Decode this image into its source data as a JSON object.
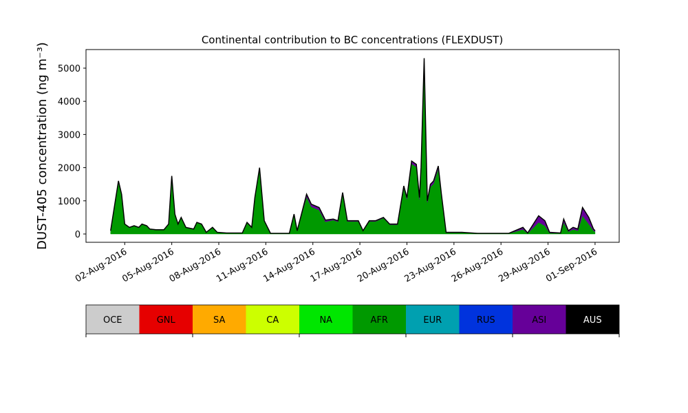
{
  "chart_data": {
    "type": "stacked_area",
    "title": "Continental contribution to BC concentrations (FLEXDUST)",
    "ylabel": "DUST-405 concentration (ng m⁻³)",
    "x": [
      1.1,
      1.4,
      1.6,
      1.8,
      2.0,
      2.3,
      2.6,
      2.9,
      3.1,
      3.4,
      3.6,
      4.0,
      4.5,
      4.8,
      5.0,
      5.2,
      5.4,
      5.6,
      5.9,
      6.4,
      6.6,
      6.9,
      7.2,
      7.6,
      7.9,
      8.5,
      9.5,
      9.8,
      10.1,
      10.3,
      10.6,
      10.9,
      11.3,
      12.5,
      12.8,
      13.0,
      13.6,
      13.9,
      14.4,
      14.8,
      15.3,
      15.6,
      15.9,
      16.2,
      16.9,
      17.2,
      17.6,
      18.0,
      18.5,
      18.9,
      19.4,
      19.8,
      20.0,
      20.3,
      20.6,
      20.8,
      20.9,
      21.1,
      21.3,
      21.5,
      21.7,
      22.0,
      22.2,
      22.5,
      23.5,
      24.5,
      26.5,
      27.4,
      27.7,
      28.4,
      28.8,
      29.1,
      29.8,
      30.0,
      30.3,
      30.6,
      30.9,
      31.2,
      31.6,
      31.9,
      32.0
    ],
    "series": [
      {
        "name": "AFR",
        "color": "#009900",
        "values": [
          90,
          990,
          1580,
          1180,
          290,
          190,
          240,
          190,
          290,
          240,
          140,
          120,
          120,
          290,
          1720,
          580,
          290,
          490,
          190,
          140,
          340,
          290,
          45,
          190,
          45,
          25,
          25,
          340,
          190,
          1080,
          1970,
          390,
          15,
          15,
          590,
          95,
          1120,
          820,
          720,
          370,
          420,
          370,
          1210,
          380,
          380,
          90,
          380,
          380,
          480,
          280,
          280,
          1390,
          1050,
          2120,
          2020,
          1040,
          1920,
          5150,
          950,
          1420,
          1520,
          1970,
          1150,
          40,
          40,
          15,
          15,
          140,
          20,
          350,
          250,
          30,
          20,
          350,
          70,
          140,
          100,
          550,
          300,
          100,
          70
        ]
      },
      {
        "name": "ASI",
        "color": "#660099",
        "values": [
          10,
          10,
          20,
          20,
          10,
          10,
          10,
          10,
          10,
          10,
          10,
          10,
          10,
          10,
          30,
          20,
          10,
          10,
          10,
          10,
          10,
          10,
          5,
          10,
          5,
          5,
          5,
          10,
          10,
          20,
          30,
          10,
          5,
          5,
          10,
          5,
          80,
          80,
          80,
          50,
          30,
          30,
          40,
          20,
          20,
          10,
          20,
          20,
          20,
          20,
          20,
          60,
          50,
          80,
          80,
          60,
          80,
          150,
          50,
          80,
          80,
          80,
          50,
          10,
          10,
          5,
          5,
          60,
          10,
          200,
          150,
          20,
          10,
          100,
          30,
          60,
          50,
          250,
          200,
          50,
          30
        ]
      }
    ],
    "xlim": [
      -0.47,
      33.54
    ],
    "xticks": [
      {
        "value": 2,
        "label": "02-Aug-2016"
      },
      {
        "value": 5,
        "label": "05-Aug-2016"
      },
      {
        "value": 8,
        "label": "08-Aug-2016"
      },
      {
        "value": 11,
        "label": "11-Aug-2016"
      },
      {
        "value": 14,
        "label": "14-Aug-2016"
      },
      {
        "value": 17,
        "label": "17-Aug-2016"
      },
      {
        "value": 20,
        "label": "20-Aug-2016"
      },
      {
        "value": 23,
        "label": "23-Aug-2016"
      },
      {
        "value": 26,
        "label": "26-Aug-2016"
      },
      {
        "value": 29,
        "label": "29-Aug-2016"
      },
      {
        "value": 32,
        "label": "01-Sep-2016"
      }
    ],
    "ylim": [
      -250,
      5560
    ],
    "yticks": [
      0,
      1000,
      2000,
      3000,
      4000,
      5000
    ],
    "outline_color": "#000000",
    "colorbar": {
      "labels": [
        "OCE",
        "GNL",
        "SA",
        "CA",
        "NA",
        "AFR",
        "EUR",
        "RUS",
        "ASI",
        "AUS"
      ],
      "colors": [
        "#cccccc",
        "#e60000",
        "#ffaa00",
        "#ccff00",
        "#00e600",
        "#009900",
        "#00a0b0",
        "#0033dd",
        "#660099",
        "#000000"
      ],
      "text_colors": [
        "#000000",
        "#000000",
        "#000000",
        "#000000",
        "#000000",
        "#000000",
        "#000000",
        "#000000",
        "#000000",
        "#ffffff"
      ]
    }
  }
}
